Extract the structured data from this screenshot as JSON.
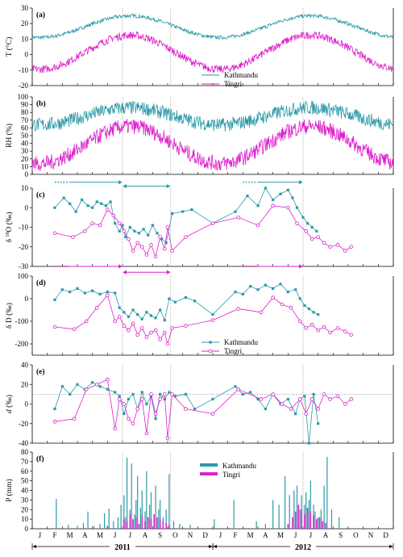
{
  "chart_data": [
    {
      "type": "line",
      "panel_label": "(a)",
      "ylabel": "T (°C)",
      "ylim": [
        -20,
        30
      ],
      "yticks": [
        -20,
        -10,
        0,
        10,
        20,
        30
      ],
      "series": [
        {
          "name": "Kathmandu",
          "color": "#2b9aa8",
          "seasonal": {
            "mean": 18,
            "amp": 7,
            "noise": 1.2
          }
        },
        {
          "name": "Tingri",
          "color": "#dd22cc",
          "seasonal": {
            "mean": 1.5,
            "amp": 11,
            "noise": 2.5
          }
        }
      ]
    },
    {
      "type": "line",
      "panel_label": "(b)",
      "ylabel": "RH (%)",
      "ylim": [
        0,
        100
      ],
      "yticks": [
        0,
        10,
        20,
        30,
        40,
        50,
        60,
        70,
        80,
        90,
        100
      ],
      "series": [
        {
          "name": "Kathmandu",
          "color": "#2b9aa8",
          "seasonal": {
            "mean": 75,
            "amp": 11,
            "noise": 9
          }
        },
        {
          "name": "Tingri",
          "color": "#dd22cc",
          "seasonal": {
            "mean": 38,
            "amp": 24,
            "noise": 10
          }
        }
      ]
    },
    {
      "type": "line",
      "panel_label": "(c)",
      "ylabel": "δ 18O (‰)",
      "ylim": [
        -30,
        10
      ],
      "yticks": [
        -30,
        -20,
        -10,
        0,
        10
      ],
      "series": [
        {
          "name": "Kathmandu",
          "color": "#2b9aa8",
          "x": [
            1.5,
            2.1,
            2.5,
            2.9,
            3.3,
            3.7,
            4.0,
            4.3,
            4.6,
            4.9,
            5.2,
            5.5,
            5.8,
            6.0,
            6.2,
            6.5,
            6.8,
            7.1,
            7.4,
            7.7,
            8.0,
            8.3,
            8.6,
            8.9,
            9.3,
            10.0,
            10.6,
            12.0,
            13.5,
            14.3,
            15.0,
            15.5,
            16.0,
            16.5,
            17.0,
            17.3,
            17.6,
            18.0,
            18.3,
            18.6,
            18.9
          ],
          "values": [
            0,
            5,
            2,
            -2,
            4,
            1,
            0,
            3,
            2,
            1,
            3,
            -8,
            -12,
            -9,
            -15,
            -10,
            -12,
            -13,
            -11,
            -14,
            -9,
            -13,
            -16,
            -18,
            -3,
            -2,
            -1,
            -8,
            -2,
            6,
            1,
            10,
            4,
            7,
            9,
            5,
            0,
            -5,
            -8,
            -10,
            -12
          ]
        },
        {
          "name": "Tingri",
          "color": "#dd22cc",
          "x": [
            1.5,
            2.7,
            3.5,
            4.0,
            4.5,
            5.0,
            5.4,
            5.8,
            6.1,
            6.4,
            6.7,
            7.0,
            7.3,
            7.6,
            7.9,
            8.2,
            8.5,
            8.8,
            9.0,
            9.3,
            10.2,
            12.0,
            13.7,
            15.0,
            16.0,
            17.0,
            17.6,
            18.2,
            18.6,
            19.0,
            19.4,
            19.8,
            20.3,
            20.8,
            21.2
          ],
          "values": [
            -13,
            -15,
            -12,
            -8,
            -9,
            -1,
            -4,
            -8,
            -12,
            -16,
            -22,
            -18,
            -20,
            -24,
            -19,
            -25,
            -15,
            -21,
            -10,
            -22,
            -15,
            -8,
            -5,
            -9,
            1,
            0,
            -8,
            -12,
            -16,
            -15,
            -18,
            -20,
            -19,
            -22,
            -20
          ]
        }
      ],
      "annotations": [
        {
          "type": "arrow",
          "color": "#2b9aa8",
          "x_from": 1.5,
          "x_to": 6.0,
          "y": 13,
          "dotted_start": true
        },
        {
          "type": "double-arrow",
          "color": "#2b9aa8",
          "x_from": 6.0,
          "x_to": 9.2,
          "y": 11
        },
        {
          "type": "arrow",
          "color": "#2b9aa8",
          "x_from": 14.0,
          "x_to": 18.0,
          "y": 13,
          "dotted_start": true
        },
        {
          "type": "arrow",
          "color": "#dd22cc",
          "x_from": 1.5,
          "x_to": 6.0,
          "y": -30,
          "dotted_start": true
        },
        {
          "type": "double-arrow",
          "color": "#dd22cc",
          "x_from": 6.0,
          "x_to": 9.2,
          "y": -33
        },
        {
          "type": "arrow",
          "color": "#dd22cc",
          "x_from": 14.0,
          "x_to": 18.0,
          "y": -30,
          "dotted_start": true
        }
      ]
    },
    {
      "type": "line",
      "panel_label": "(d)",
      "ylabel": "δ D (‰)",
      "ylim": [
        -250,
        100
      ],
      "yticks": [
        -200,
        -100,
        0,
        100
      ],
      "legend": [
        "Kathmandu",
        "Tingri"
      ],
      "series": [
        {
          "name": "Kathmandu",
          "color": "#2b9aa8",
          "x": [
            1.5,
            2.0,
            2.5,
            3.0,
            3.5,
            4.0,
            4.5,
            5.0,
            5.5,
            5.8,
            6.1,
            6.4,
            6.7,
            7.0,
            7.3,
            7.6,
            7.9,
            8.2,
            8.5,
            8.8,
            9.1,
            9.5,
            10.2,
            10.8,
            12.0,
            13.5,
            14.0,
            14.5,
            15.0,
            15.5,
            16.0,
            16.5,
            17.0,
            17.5,
            17.8,
            18.1,
            18.4,
            18.7,
            19.0
          ],
          "values": [
            -5,
            40,
            30,
            45,
            25,
            35,
            20,
            30,
            25,
            -40,
            -60,
            -80,
            -50,
            -70,
            -90,
            -60,
            -75,
            -85,
            -50,
            -95,
            0,
            -15,
            5,
            -10,
            -70,
            30,
            20,
            55,
            40,
            60,
            45,
            65,
            30,
            40,
            0,
            -30,
            -45,
            -60,
            -70
          ]
        },
        {
          "name": "Tingri",
          "color": "#dd22cc",
          "x": [
            1.5,
            2.8,
            3.6,
            4.3,
            5.0,
            5.5,
            5.8,
            6.1,
            6.4,
            6.7,
            7.0,
            7.3,
            7.6,
            7.9,
            8.2,
            8.5,
            8.8,
            9.0,
            9.3,
            10.2,
            12.0,
            13.7,
            15.2,
            16.0,
            16.6,
            17.2,
            17.8,
            18.2,
            18.6,
            19.0,
            19.4,
            19.8,
            20.3,
            20.8,
            21.2
          ],
          "values": [
            -125,
            -135,
            -100,
            -40,
            15,
            -100,
            -80,
            -120,
            -140,
            -110,
            -160,
            -130,
            -170,
            -150,
            -140,
            -180,
            -150,
            -200,
            -130,
            -120,
            -95,
            -45,
            -60,
            5,
            -25,
            -40,
            -100,
            -130,
            -115,
            -140,
            -125,
            -150,
            -130,
            -145,
            -160
          ]
        }
      ]
    },
    {
      "type": "line",
      "panel_label": "(e)",
      "ylabel": "d (‰)",
      "ylim": [
        -40,
        40
      ],
      "yticks": [
        -40,
        -20,
        0,
        20,
        40
      ],
      "reference_line": 10,
      "series": [
        {
          "name": "Kathmandu",
          "color": "#2b9aa8",
          "x": [
            1.5,
            2.0,
            2.5,
            3.0,
            3.5,
            4.0,
            4.5,
            5.0,
            5.5,
            5.8,
            6.1,
            6.4,
            6.7,
            7.0,
            7.3,
            7.6,
            7.9,
            8.2,
            8.5,
            8.8,
            9.1,
            9.5,
            10.2,
            10.8,
            12.0,
            13.5,
            14.0,
            14.5,
            15.0,
            15.5,
            16.0,
            16.5,
            17.0,
            17.5,
            17.8,
            18.1,
            18.4,
            18.7,
            19.0
          ],
          "values": [
            -5,
            18,
            10,
            20,
            15,
            22,
            18,
            15,
            12,
            8,
            -10,
            5,
            10,
            -5,
            12,
            0,
            8,
            -15,
            10,
            5,
            12,
            8,
            10,
            -5,
            5,
            18,
            10,
            12,
            5,
            -5,
            10,
            0,
            5,
            -10,
            5,
            8,
            -40,
            10,
            -20
          ]
        },
        {
          "name": "Tingri",
          "color": "#dd22cc",
          "x": [
            1.5,
            2.8,
            3.6,
            4.3,
            5.0,
            5.5,
            5.8,
            6.1,
            6.4,
            6.7,
            7.0,
            7.3,
            7.6,
            7.9,
            8.2,
            8.5,
            8.8,
            9.0,
            9.3,
            10.2,
            12.0,
            13.7,
            15.2,
            16.0,
            16.6,
            17.2,
            17.8,
            18.2,
            18.6,
            19.0,
            19.4,
            19.8,
            20.3,
            20.8,
            21.2
          ],
          "values": [
            -18,
            -15,
            15,
            20,
            25,
            -25,
            5,
            0,
            -15,
            -20,
            -5,
            5,
            -30,
            10,
            -10,
            5,
            10,
            -35,
            10,
            -5,
            -10,
            15,
            5,
            10,
            0,
            -5,
            5,
            -10,
            5,
            -5,
            10,
            5,
            8,
            0,
            5
          ]
        }
      ]
    },
    {
      "type": "bar",
      "panel_label": "(f)",
      "ylabel": "P (mm)",
      "ylim": [
        0,
        80
      ],
      "yticks": [
        0,
        10,
        20,
        30,
        40,
        50,
        60,
        70,
        80
      ],
      "legend": [
        "Kathmandu",
        "Tingri"
      ],
      "series": [
        {
          "name": "Kathmandu",
          "color": "#2b9aa8",
          "x": [
            1.6,
            2.4,
            3.0,
            3.4,
            3.7,
            4.1,
            4.5,
            4.8,
            5.1,
            5.4,
            5.7,
            5.9,
            6.1,
            6.2,
            6.3,
            6.5,
            6.6,
            6.8,
            6.9,
            7.0,
            7.2,
            7.3,
            7.5,
            7.6,
            7.8,
            7.9,
            8.1,
            8.2,
            8.4,
            8.5,
            8.7,
            8.9,
            9.1,
            9.4,
            9.8,
            10.5,
            12.1,
            13.4,
            14.9,
            15.5,
            16.0,
            16.4,
            16.8,
            17.1,
            17.4,
            17.6,
            17.8,
            17.9,
            18.1,
            18.2,
            18.4,
            18.5,
            18.7,
            18.8,
            19.0,
            19.2,
            19.4,
            19.6,
            19.9,
            20.4
          ],
          "values": [
            31,
            4,
            3,
            6,
            18,
            3,
            5,
            16,
            21,
            8,
            12,
            25,
            35,
            12,
            74,
            20,
            68,
            15,
            30,
            55,
            22,
            40,
            18,
            60,
            25,
            38,
            15,
            45,
            20,
            30,
            12,
            20,
            57,
            8,
            5,
            4,
            10,
            30,
            8,
            5,
            30,
            25,
            55,
            35,
            40,
            45,
            20,
            35,
            25,
            38,
            30,
            50,
            25,
            18,
            12,
            20,
            45,
            75,
            20,
            12
          ]
        },
        {
          "name": "Tingri",
          "color": "#dd22cc",
          "x": [
            5.0,
            6.1,
            6.3,
            6.5,
            6.7,
            6.9,
            7.1,
            7.3,
            7.5,
            7.7,
            7.9,
            8.1,
            8.3,
            8.5,
            8.7,
            8.9,
            9.1,
            17.0,
            17.3,
            17.5,
            17.7,
            17.9,
            18.1,
            18.3,
            18.5,
            18.7,
            18.9,
            19.1,
            19.3,
            19.5
          ],
          "values": [
            3,
            10,
            8,
            15,
            10,
            12,
            5,
            14,
            8,
            12,
            10,
            15,
            12,
            10,
            8,
            6,
            4,
            5,
            12,
            18,
            25,
            20,
            15,
            22,
            18,
            14,
            10,
            12,
            8,
            6
          ]
        }
      ]
    }
  ],
  "x_axis": {
    "months": [
      "J",
      "F",
      "M",
      "A",
      "M",
      "J",
      "J",
      "A",
      "S",
      "O",
      "N",
      "D",
      "J",
      "F",
      "M",
      "A",
      "M",
      "J",
      "J",
      "A",
      "S",
      "O",
      "N",
      "D"
    ],
    "years": [
      "2011",
      "2012"
    ],
    "xlim": [
      0,
      24
    ],
    "reference_lines": [
      6.0,
      9.2,
      18.0
    ]
  }
}
